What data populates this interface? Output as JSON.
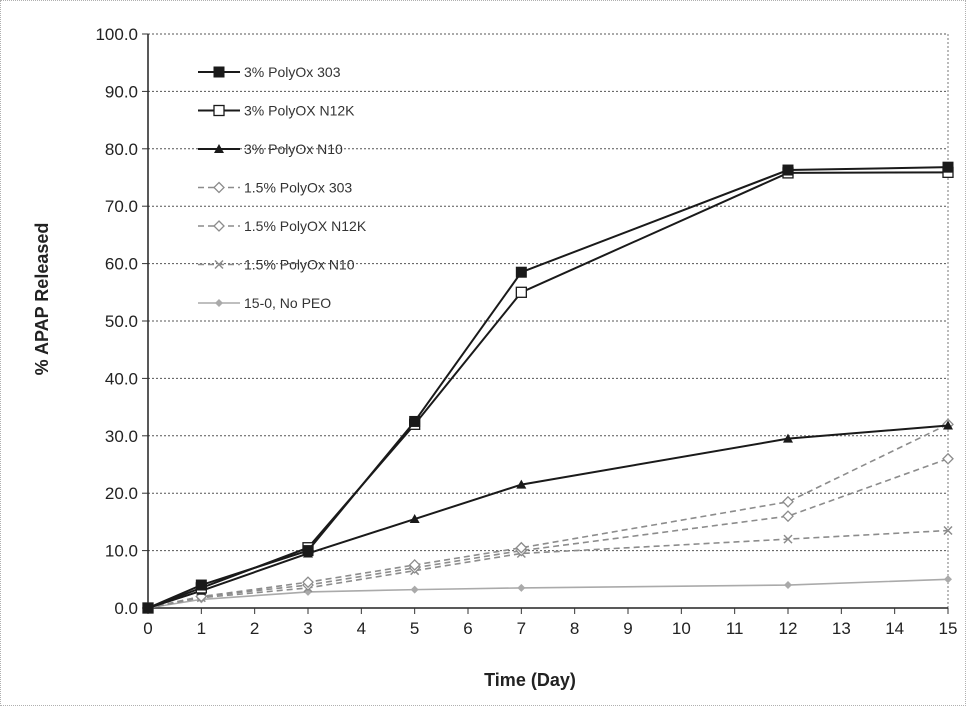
{
  "chart_data": {
    "type": "line",
    "title": "",
    "xlabel": "Time (Day)",
    "ylabel": "% APAP Released",
    "xlim": [
      0,
      15
    ],
    "ylim": [
      0,
      100
    ],
    "x_ticks": [
      0,
      1,
      2,
      3,
      4,
      5,
      6,
      7,
      8,
      9,
      10,
      11,
      12,
      13,
      14,
      15
    ],
    "y_ticks": [
      "0.0",
      "10.0",
      "20.0",
      "30.0",
      "40.0",
      "50.0",
      "60.0",
      "70.0",
      "80.0",
      "90.0",
      "100.0"
    ],
    "grid": "horizontal dotted",
    "legend_position": "top-left",
    "x": [
      0,
      1,
      3,
      5,
      7,
      12,
      15
    ],
    "series": [
      {
        "name": "3% PolyOx 303",
        "values": [
          0,
          4,
          10,
          32.5,
          58.5,
          76.3,
          76.8
        ],
        "color": "#1a1a1a",
        "dash": "solid",
        "marker": "square-filled"
      },
      {
        "name": "3% PolyOX N12K",
        "values": [
          0,
          3.5,
          10.5,
          32,
          55,
          75.8,
          75.9
        ],
        "color": "#1a1a1a",
        "dash": "solid",
        "marker": "square-open"
      },
      {
        "name": "3% PolyOx N10",
        "values": [
          0,
          3,
          9.5,
          15.5,
          21.5,
          29.5,
          31.8
        ],
        "color": "#1a1a1a",
        "dash": "solid",
        "marker": "triangle"
      },
      {
        "name": "1.5% PolyOx 303",
        "values": [
          0,
          2,
          4.5,
          7.5,
          10.5,
          18.5,
          32
        ],
        "color": "#8c8c8c",
        "dash": "dashed",
        "marker": "diamond"
      },
      {
        "name": "1.5% PolyOX N12K",
        "values": [
          0,
          2,
          4,
          7,
          10,
          16,
          26
        ],
        "color": "#8c8c8c",
        "dash": "dashed",
        "marker": "diamond"
      },
      {
        "name": "1.5% PolyOx N10",
        "values": [
          0,
          1.8,
          3.5,
          6.5,
          9.5,
          12,
          13.5
        ],
        "color": "#8c8c8c",
        "dash": "dashed",
        "marker": "x"
      },
      {
        "name": "15-0, No PEO",
        "values": [
          0,
          1.5,
          2.8,
          3.2,
          3.5,
          4,
          5
        ],
        "color": "#aaaaaa",
        "dash": "solid",
        "marker": "diamond-small"
      }
    ]
  }
}
